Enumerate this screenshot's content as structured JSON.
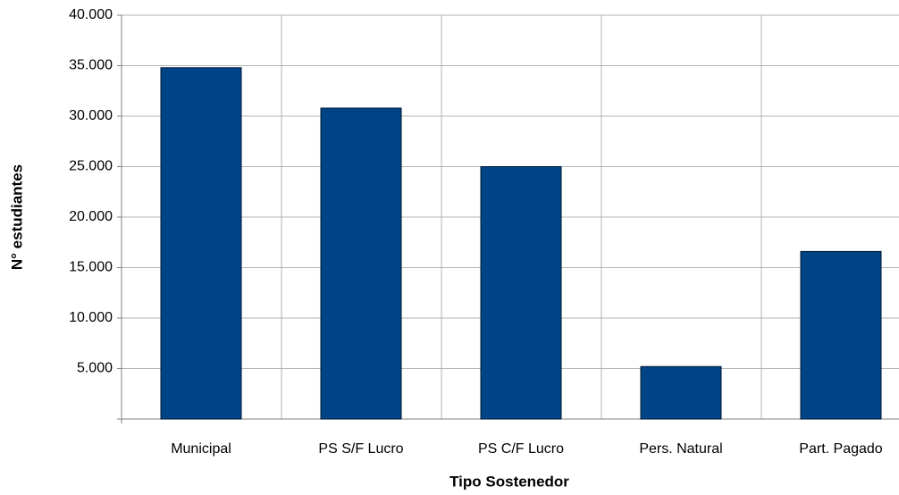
{
  "chart_data": {
    "type": "bar",
    "x_label": "Tipo Sostenedor",
    "y_label": "N° estudiantes",
    "categories": [
      "Municipal",
      "PS S/F Lucro",
      "PS C/F Lucro",
      "Pers. Natural",
      "Part. Pagado"
    ],
    "values": [
      34800,
      30800,
      25000,
      5200,
      16600
    ],
    "color": "#004488",
    "ylim": [
      0,
      40000
    ],
    "yticks": [
      {
        "value": 5000,
        "label": "5.000"
      },
      {
        "value": 10000,
        "label": "10.000"
      },
      {
        "value": 15000,
        "label": "15.000"
      },
      {
        "value": 20000,
        "label": "20.000"
      },
      {
        "value": 25000,
        "label": "25.000"
      },
      {
        "value": 30000,
        "label": "30.000"
      },
      {
        "value": 35000,
        "label": "35.000"
      },
      {
        "value": 40000,
        "label": "40.000"
      }
    ],
    "grid": true
  }
}
